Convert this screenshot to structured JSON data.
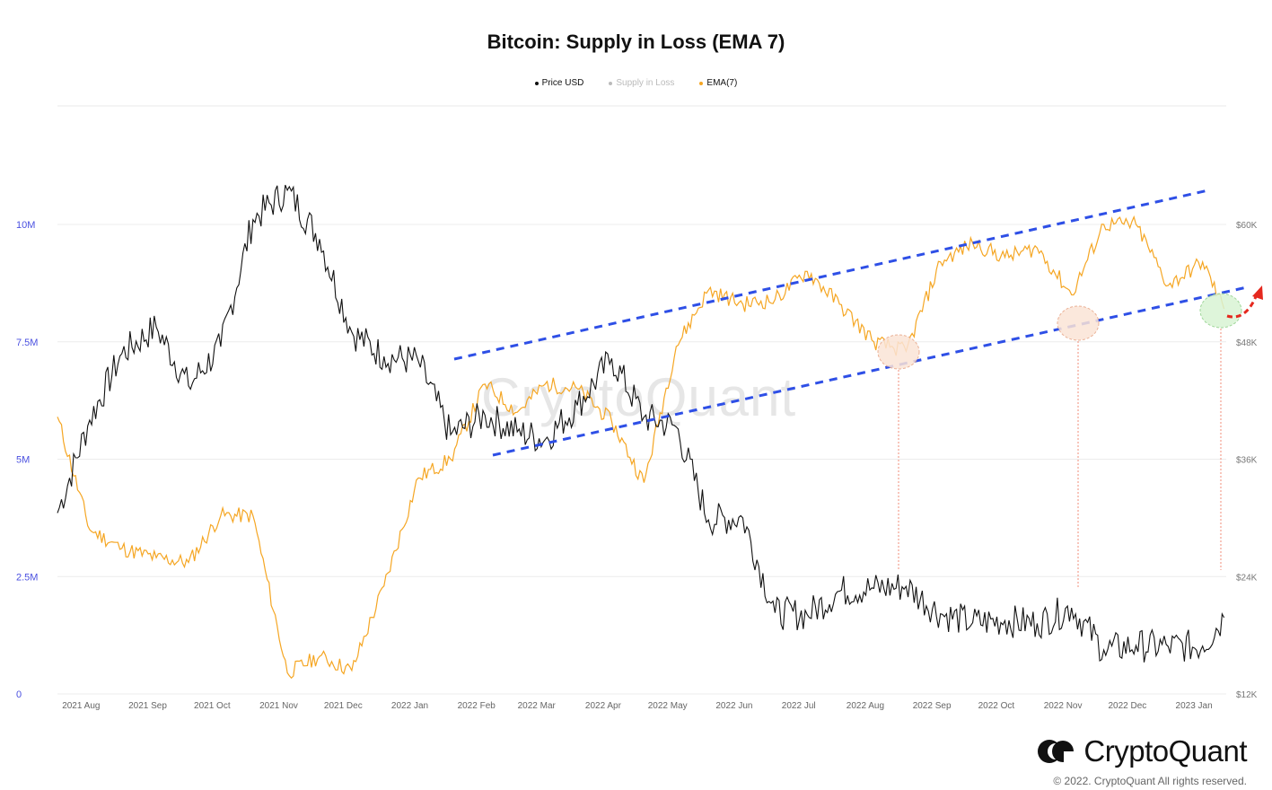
{
  "title": "Bitcoin: Supply in Loss (EMA 7)",
  "legend": [
    {
      "label": "Price USD",
      "color": "#111111"
    },
    {
      "label": "Supply in Loss",
      "color": "#bbbbbb"
    },
    {
      "label": "EMA(7)",
      "color": "#f5a623"
    }
  ],
  "watermark": "CryptoQuant",
  "brand": {
    "name": "CryptoQuant",
    "copyright": "© 2022. CryptoQuant All rights reserved."
  },
  "chart_data": {
    "type": "line",
    "grid": true,
    "x": [
      "2021-07-21",
      "2021-08-05",
      "2021-08-20",
      "2021-09-05",
      "2021-09-20",
      "2021-10-05",
      "2021-10-20",
      "2021-11-05",
      "2021-11-20",
      "2021-12-05",
      "2021-12-20",
      "2022-01-05",
      "2022-01-20",
      "2022-02-05",
      "2022-02-20",
      "2022-03-05",
      "2022-03-20",
      "2022-04-05",
      "2022-04-20",
      "2022-05-05",
      "2022-05-20",
      "2022-06-05",
      "2022-06-20",
      "2022-07-05",
      "2022-07-20",
      "2022-08-05",
      "2022-08-20",
      "2022-09-05",
      "2022-09-20",
      "2022-10-05",
      "2022-10-20",
      "2022-11-05",
      "2022-11-20",
      "2022-12-05",
      "2022-12-20",
      "2023-01-05",
      "2023-01-15"
    ],
    "x_ticks": [
      "2021 Aug",
      "2021 Sep",
      "2021 Oct",
      "2021 Nov",
      "2021 Dec",
      "2022 Jan",
      "2022 Feb",
      "2022 Mar",
      "2022 Apr",
      "2022 May",
      "2022 Jun",
      "2022 Jul",
      "2022 Aug",
      "2022 Sep",
      "2022 Oct",
      "2022 Nov",
      "2022 Dec",
      "2023 Jan"
    ],
    "y_left": {
      "ticks": [
        "0",
        "2.5M",
        "5M",
        "7.5M",
        "10M"
      ],
      "range": [
        0,
        10000000
      ]
    },
    "y_right": {
      "ticks": [
        "$12K",
        "$24K",
        "$36K",
        "$48K",
        "$60K"
      ],
      "range": [
        12000,
        60000
      ]
    },
    "series": [
      {
        "name": "Price USD",
        "axis": "right",
        "color": "#111111",
        "values": [
          30500,
          40000,
          46800,
          49500,
          43500,
          47500,
          60500,
          63500,
          58500,
          49000,
          46500,
          46000,
          38500,
          40500,
          38800,
          38000,
          41500,
          46300,
          40300,
          39300,
          29800,
          30000,
          20300,
          20100,
          22500,
          22800,
          23000,
          20200,
          19300,
          19500,
          19200,
          20800,
          16500,
          16950,
          16850,
          16900,
          19800
        ]
      },
      {
        "name": "EMA(7)",
        "axis": "left",
        "color": "#f5a623",
        "values": [
          5900000,
          3500000,
          3100000,
          2900000,
          2800000,
          3800000,
          3800000,
          450000,
          800000,
          500000,
          2300000,
          4600000,
          5000000,
          6600000,
          6000000,
          6600000,
          6500000,
          5800000,
          4500000,
          7400000,
          8600000,
          8300000,
          8400000,
          9000000,
          8300000,
          7500000,
          7300000,
          9200000,
          9600000,
          9300000,
          9500000,
          8500000,
          10000000,
          10000000,
          8700000,
          9200000,
          8200000
        ]
      }
    ],
    "annotations": [
      {
        "type": "trend-channel",
        "color": "#2e4fe6"
      },
      {
        "type": "circle",
        "date": "2022-08-22",
        "color": "#f4a98a"
      },
      {
        "type": "circle",
        "date": "2022-11-02",
        "color": "#f4a98a"
      },
      {
        "type": "circle",
        "date": "2023-01-15",
        "color": "#7ad67a"
      },
      {
        "type": "arrow",
        "color": "#e5281e"
      }
    ]
  }
}
